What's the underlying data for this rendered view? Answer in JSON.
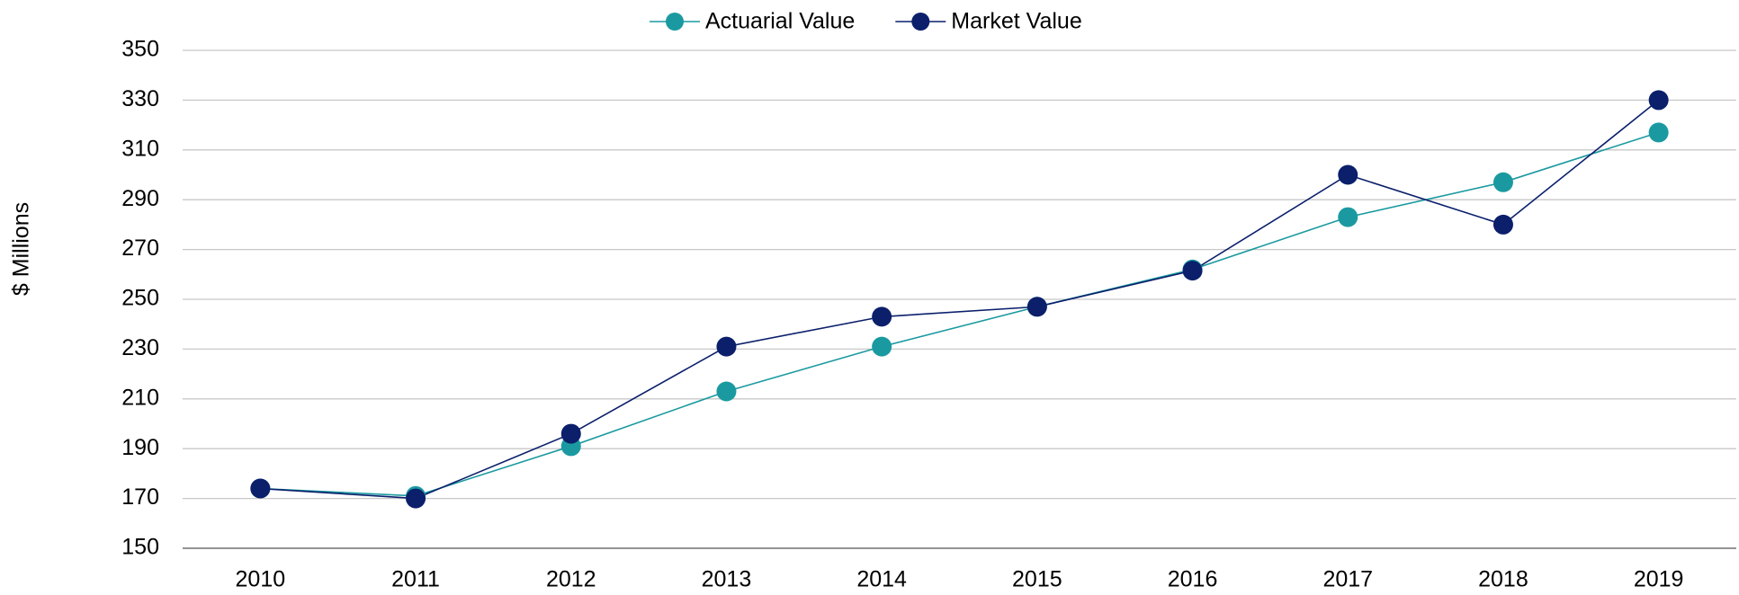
{
  "chart_data": {
    "type": "line",
    "y_label": "$ Millions",
    "categories": [
      "2010",
      "2011",
      "2012",
      "2013",
      "2014",
      "2015",
      "2016",
      "2017",
      "2018",
      "2019"
    ],
    "series": [
      {
        "name": "Actuarial Value",
        "color": "#1a9aa0",
        "values": [
          174,
          171,
          191,
          213,
          231,
          247,
          262,
          283,
          297,
          317
        ]
      },
      {
        "name": "Market Value",
        "color": "#0b1f6b",
        "values": [
          174,
          170,
          196,
          231,
          243,
          247,
          261.5,
          300,
          280,
          330
        ]
      }
    ],
    "ylim": [
      150,
      350
    ],
    "yticks": [
      150,
      170,
      190,
      210,
      230,
      250,
      270,
      290,
      310,
      330,
      350
    ],
    "grid": true,
    "legend": "top"
  }
}
